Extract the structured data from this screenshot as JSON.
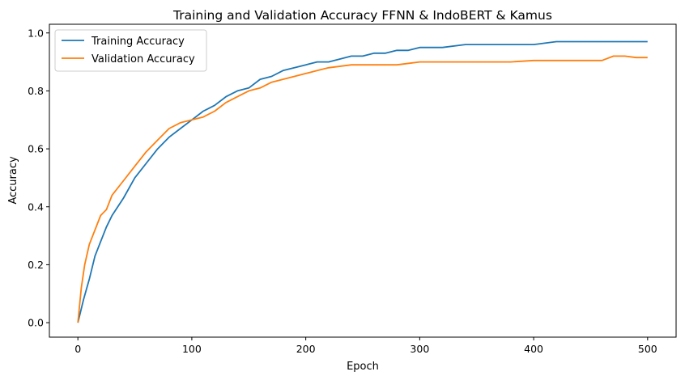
{
  "chart_data": {
    "type": "line",
    "title": "Training and Validation Accuracy FFNN & IndoBERT & Kamus",
    "xlabel": "Epoch",
    "ylabel": "Accuracy",
    "xlim": [
      -25,
      525
    ],
    "ylim": [
      -0.05,
      1.03
    ],
    "xticks": [
      0,
      100,
      200,
      300,
      400,
      500
    ],
    "yticks": [
      0.0,
      0.2,
      0.4,
      0.6,
      0.8,
      1.0
    ],
    "ytick_labels": [
      "0.0",
      "0.2",
      "0.4",
      "0.6",
      "0.8",
      "1.0"
    ],
    "grid": false,
    "legend": "top-left",
    "series": [
      {
        "name": "Training Accuracy",
        "color": "#1f77b4",
        "x": [
          0,
          5,
          10,
          15,
          20,
          25,
          30,
          40,
          50,
          60,
          70,
          80,
          90,
          100,
          110,
          120,
          130,
          140,
          150,
          160,
          170,
          180,
          190,
          200,
          210,
          220,
          230,
          240,
          250,
          260,
          270,
          280,
          290,
          300,
          320,
          340,
          360,
          380,
          400,
          420,
          440,
          460,
          480,
          500
        ],
        "y": [
          0.0,
          0.08,
          0.15,
          0.23,
          0.28,
          0.33,
          0.37,
          0.43,
          0.5,
          0.55,
          0.6,
          0.64,
          0.67,
          0.7,
          0.73,
          0.75,
          0.78,
          0.8,
          0.81,
          0.84,
          0.85,
          0.87,
          0.88,
          0.89,
          0.9,
          0.9,
          0.91,
          0.92,
          0.92,
          0.93,
          0.93,
          0.94,
          0.94,
          0.95,
          0.95,
          0.96,
          0.96,
          0.96,
          0.96,
          0.97,
          0.97,
          0.97,
          0.97,
          0.97
        ]
      },
      {
        "name": "Validation Accuracy",
        "color": "#ff7f0e",
        "x": [
          0,
          3,
          6,
          10,
          15,
          20,
          25,
          30,
          40,
          50,
          60,
          70,
          80,
          90,
          100,
          110,
          120,
          130,
          140,
          150,
          160,
          170,
          180,
          190,
          200,
          210,
          220,
          240,
          260,
          280,
          300,
          320,
          340,
          360,
          380,
          400,
          420,
          440,
          460,
          470,
          480,
          490,
          500
        ],
        "y": [
          0.0,
          0.12,
          0.2,
          0.27,
          0.32,
          0.37,
          0.39,
          0.44,
          0.49,
          0.54,
          0.59,
          0.63,
          0.67,
          0.69,
          0.7,
          0.71,
          0.73,
          0.76,
          0.78,
          0.8,
          0.81,
          0.83,
          0.84,
          0.85,
          0.86,
          0.87,
          0.88,
          0.89,
          0.89,
          0.89,
          0.9,
          0.9,
          0.9,
          0.9,
          0.9,
          0.905,
          0.905,
          0.905,
          0.905,
          0.92,
          0.92,
          0.915,
          0.915
        ]
      }
    ]
  }
}
